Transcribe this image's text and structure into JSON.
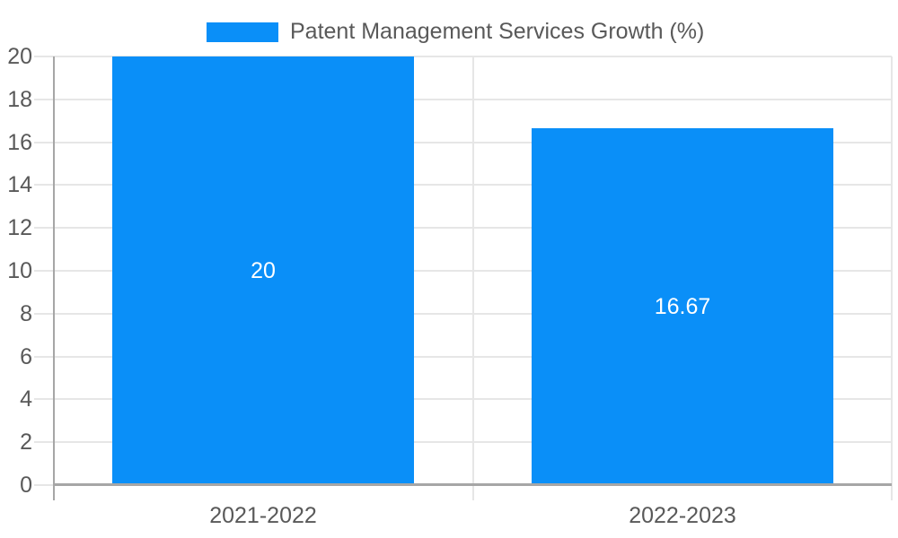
{
  "chart_data": {
    "type": "bar",
    "title": "Patent Management Services Growth (%)",
    "categories": [
      "2021-2022",
      "2022-2023"
    ],
    "values": [
      20,
      16.67
    ],
    "value_labels": [
      "20",
      "16.67"
    ],
    "xlabel": "",
    "ylabel": "",
    "ylim": [
      0,
      20
    ],
    "yticks": [
      0,
      2,
      4,
      6,
      8,
      10,
      12,
      14,
      16,
      18,
      20
    ],
    "grid": true,
    "legend_position": "top",
    "value_label_position": "center-of-bar"
  },
  "legend": {
    "swatch_color": "#0a8ff8",
    "label": "Patent Management Services Growth (%)"
  },
  "colors": {
    "bar": "#0a8ff8",
    "gridline": "#e6e6e6",
    "axis": "#a6a6a6",
    "text": "#595959",
    "bar_label": "#ffffff",
    "background": "#ffffff"
  }
}
